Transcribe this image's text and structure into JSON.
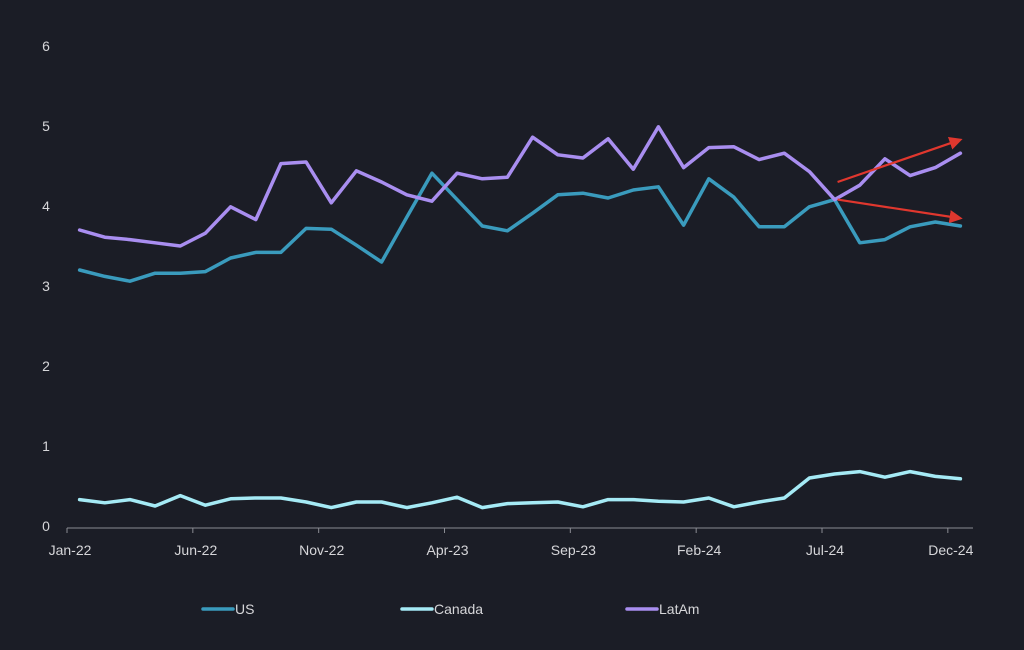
{
  "chart_data": {
    "type": "line",
    "title": "",
    "xlabel": "",
    "ylabel": "",
    "ylim": [
      0,
      6
    ],
    "yticks": [
      "0",
      "1",
      "2",
      "3",
      "4",
      "5",
      "6"
    ],
    "grid": false,
    "legend_position": "bottom",
    "x": [
      "Jan-22",
      "Feb-22",
      "Mar-22",
      "Apr-22",
      "May-22",
      "Jun-22",
      "Jul-22",
      "Aug-22",
      "Sep-22",
      "Oct-22",
      "Nov-22",
      "Dec-22",
      "Jan-23",
      "Feb-23",
      "Mar-23",
      "Apr-23",
      "May-23",
      "Jun-23",
      "Jul-23",
      "Aug-23",
      "Sep-23",
      "Oct-23",
      "Nov-23",
      "Dec-23",
      "Jan-24",
      "Feb-24",
      "Mar-24",
      "Apr-24",
      "May-24",
      "Jun-24",
      "Jul-24",
      "Aug-24",
      "Sep-24",
      "Oct-24",
      "Nov-24",
      "Dec-24"
    ],
    "xtick_labels": [
      "Jan-22",
      "Jun-22",
      "Nov-22",
      "Apr-23",
      "Sep-23",
      "Feb-24",
      "Jul-24",
      "Dec-24"
    ],
    "series": [
      {
        "name": "US",
        "color": "#3a9bbd",
        "values": [
          3.2,
          3.12,
          3.06,
          3.16,
          3.16,
          3.18,
          3.35,
          3.42,
          3.42,
          3.72,
          3.71,
          3.51,
          3.3,
          3.86,
          4.41,
          4.08,
          3.75,
          3.69,
          3.91,
          4.14,
          4.16,
          4.1,
          4.2,
          4.24,
          3.76,
          4.34,
          4.11,
          3.74,
          3.74,
          3.99,
          4.08,
          3.54,
          3.58,
          3.74,
          3.8,
          3.75
        ]
      },
      {
        "name": "Canada",
        "color": "#a5eaf5",
        "values": [
          0.33,
          0.29,
          0.33,
          0.25,
          0.38,
          0.26,
          0.34,
          0.35,
          0.35,
          0.3,
          0.23,
          0.3,
          0.3,
          0.23,
          0.29,
          0.36,
          0.23,
          0.28,
          0.29,
          0.3,
          0.24,
          0.33,
          0.33,
          0.31,
          0.3,
          0.35,
          0.24,
          0.3,
          0.35,
          0.6,
          0.65,
          0.68,
          0.61,
          0.68,
          0.62,
          0.59
        ]
      },
      {
        "name": "LatAm",
        "color": "#a98ef0",
        "values": [
          3.7,
          3.61,
          3.58,
          3.54,
          3.5,
          3.66,
          3.99,
          3.83,
          4.53,
          4.55,
          4.04,
          4.44,
          4.3,
          4.14,
          4.06,
          4.41,
          4.34,
          4.36,
          4.86,
          4.64,
          4.6,
          4.84,
          4.46,
          4.99,
          4.48,
          4.73,
          4.74,
          4.58,
          4.66,
          4.43,
          4.08,
          4.26,
          4.59,
          4.38,
          4.48,
          4.66
        ]
      }
    ],
    "annotations": [
      {
        "type": "arrow",
        "color": "#e0372e",
        "meaning": "upward trend",
        "from": {
          "x": "Jul-24",
          "y": 4.3
        },
        "to": {
          "x": "Dec-24",
          "y": 4.82
        }
      },
      {
        "type": "arrow",
        "color": "#e0372e",
        "meaning": "downward trend",
        "from": {
          "x": "Jul-24",
          "y": 4.08
        },
        "to": {
          "x": "Dec-24",
          "y": 3.85
        }
      }
    ]
  },
  "colors": {
    "background": "#1b1d26",
    "text": "#d6d6d9",
    "axis": "#8a8c93"
  }
}
